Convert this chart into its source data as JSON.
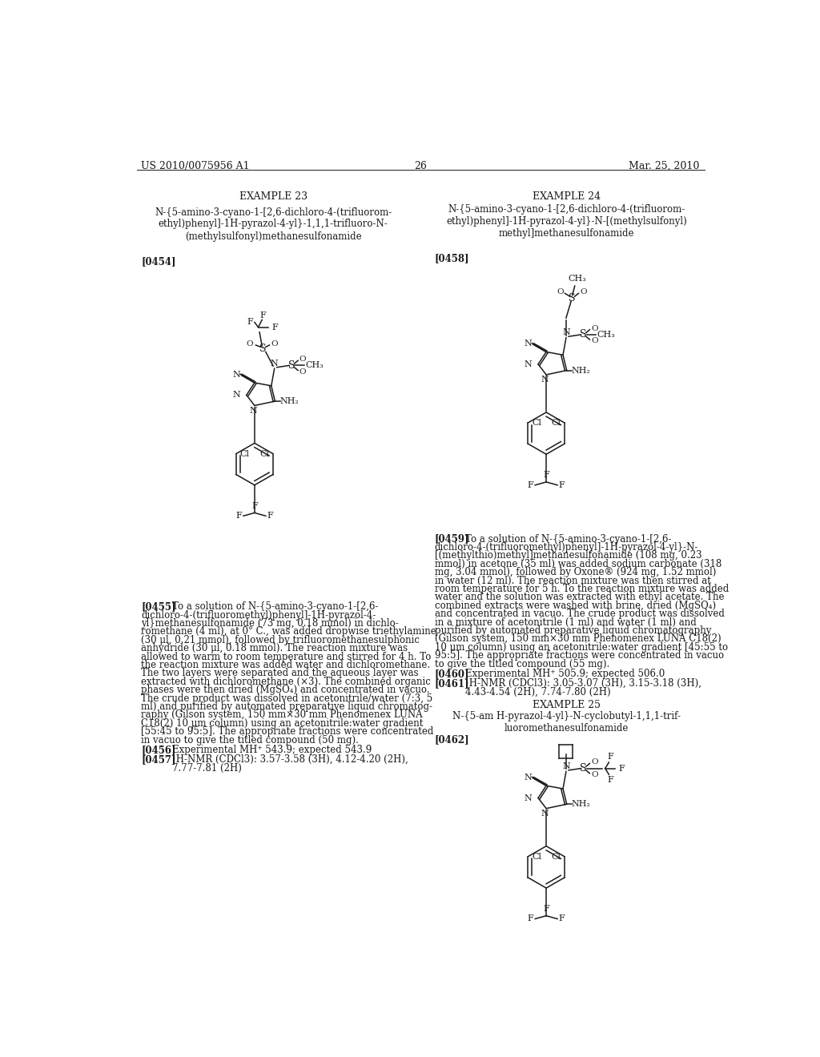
{
  "bg": "#ffffff",
  "fg": "#1a1a1a",
  "header_left": "US 2010/0075956 A1",
  "header_right": "Mar. 25, 2010",
  "page_num": "26",
  "ex23_title": "EXAMPLE 23",
  "ex23_name": "N-{5-amino-3-cyano-1-[2,6-dichloro-4-(trifluorom-\nethyl)phenyl]-1H-pyrazol-4-yl}-1,1,1-trifluoro-N-\n(methylsulfonyl)methanesulfonamide",
  "ex23_ref": "[0454]",
  "ex24_title": "EXAMPLE 24",
  "ex24_name": "N-{5-amino-3-cyano-1-[2,6-dichloro-4-(trifluorom-\nethyl)phenyl]-1H-pyrazol-4-yl}-N-[(methylsulfonyl)\nmethyl]methanesulfonamide",
  "ex24_ref": "[0458]",
  "ex25_title": "EXAMPLE 25",
  "ex25_name": "N-{5-am H-pyrazol-4-yl}-N-cyclobutyl-1,1,1-trif-\nluoromethanesulfonamide",
  "ex25_ref": "[0462]",
  "p0455_ref": "[0455]",
  "p0455_body": "To a solution of N-{5-amino-3-cyano-1-[2,6-\ndichloro-4-(trifluoromethyl)phenyl]-1H-pyrazol-4-\nyl}methanesulfonamide (73 mg, 0.18 mmol) in dichlo-\nromethane (4 ml), at 0° C., was added dropwise triethylamine\n(30 μl, 0.21 mmol), followed by trifluoromethanesulphonic\nanhydride (30 μl, 0.18 mmol). The reaction mixture was\nallowed to warm to room temperature and stirred for 4 h. To\nthe reaction mixture was added water and dichloromethane.\nThe two layers were separated and the aqueous layer was\nextracted with dichloromethane (×3). The combined organic\nphases were then dried (MgSO₄) and concentrated in vacuo.\nThe crude product was dissolved in acetonitrile/water (7:3, 5\nml) and purified by automated preparative liquid chromatog-\nraphy (Gilson system, 150 mm×30 mm Phenomenex LUNA\nC18(2) 10 μm column) using an acetonitrile:water gradient\n[55:45 to 95:5]. The appropriate fractions were concentrated\nin vacuo to give the titled compound (50 mg).",
  "p0456_ref": "[0456]",
  "p0456_body": "Experimental MH⁺ 543.9; expected 543.9",
  "p0457_ref": "[0457]",
  "p0457_body": "¹H-NMR (CDCl3): 3.57-3.58 (3H), 4.12-4.20 (2H),\n7.77-7.81 (2H)",
  "p0459_ref": "[0459]",
  "p0459_body": "To a solution of N-{5-amino-3-cyano-1-[2,6-\ndichloro-4-(trifluoromethyl)phenyl]-1H-pyrazol-4-yl}-N-\n[(methylthio)methyl]methanesulfonamide (108 mg, 0.23\nmmol) in acetone (35 ml) was added sodium carbonate (318\nmg, 3.04 mmol), followed by Oxone® (924 mg, 1.52 mmol)\nin water (12 ml). The reaction mixture was then stirred at\nroom temperature for 5 h. To the reaction mixture was added\nwater and the solution was extracted with ethyl acetate. The\ncombined extracts were washed with brine, dried (MgSO₄)\nand concentrated in vacuo. The crude product was dissolved\nin a mixture of acetonitrile (1 ml) and water (1 ml) and\npurified by automated preparative liquid chromatography\n(Gilson system, 150 mm×30 mm Phenomenex LUNA C18(2)\n10 μm column) using an acetonitrile:water gradient [45:55 to\n95:5]. The appropriate fractions were concentrated in vacuo\nto give the titled compound (55 mg).",
  "p0460_ref": "[0460]",
  "p0460_body": "Experimental MH⁺ 505.9; expected 506.0",
  "p0461_ref": "[0461]",
  "p0461_body": "¹H-NMR (CDCl3): 3.05-3.07 (3H), 3.15-3.18 (3H),\n4.43-4.54 (2H), 7.74-7.80 (2H)"
}
